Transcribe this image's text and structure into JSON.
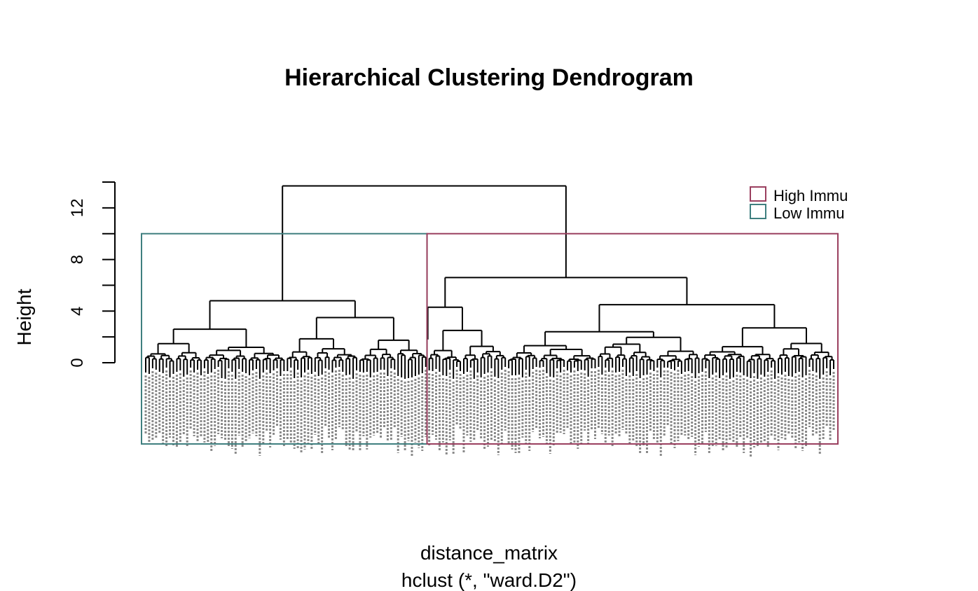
{
  "chart_data": {
    "type": "dendrogram",
    "title": "Hierarchical Clustering Dendrogram",
    "xlabel": "distance_matrix",
    "sub": "hclust (*, \"ward.D2\")",
    "ylabel": "Height",
    "ylim": [
      0,
      14
    ],
    "yticks": [
      0,
      4,
      8,
      12
    ],
    "leaf_count": 200,
    "merges": [
      {
        "name": "root",
        "height": 13.7
      },
      {
        "name": "left-cluster",
        "height": 4.8
      },
      {
        "name": "left-a",
        "height": 2.6
      },
      {
        "name": "left-b",
        "height": 3.5
      },
      {
        "name": "right-cluster",
        "height": 6.6
      },
      {
        "name": "right-a",
        "height": 4.3
      },
      {
        "name": "right-a-1",
        "height": 2.5
      },
      {
        "name": "right-b",
        "height": 4.5
      },
      {
        "name": "right-b-1",
        "height": 2.4
      },
      {
        "name": "right-b-2",
        "height": 2.7
      }
    ],
    "clusters": [
      {
        "name": "Low Immu",
        "color": "#3f7f7f",
        "leaf_fraction": [
          0,
          0.41
        ],
        "box_height": 10
      },
      {
        "name": "High Immu",
        "color": "#9a3f5f",
        "leaf_fraction": [
          0.41,
          1
        ],
        "box_height": 10
      }
    ],
    "legend": {
      "placement": "top-right",
      "entries": [
        {
          "label": "High Immu",
          "color": "#9a3f5f"
        },
        {
          "label": "Low Immu",
          "color": "#3f7f7f"
        }
      ]
    }
  }
}
